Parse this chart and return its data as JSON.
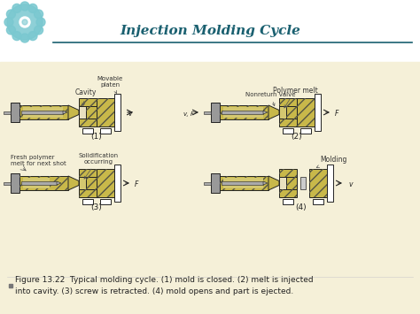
{
  "title": "Injection Molding Cycle",
  "bg_white": "#ffffff",
  "bg_cream": "#f5f0d8",
  "title_color": "#1a6070",
  "title_fontsize": 11,
  "caption": "Figure 13.22  Typical molding cycle. (1) mold is closed. (2) melt is injected\ninto cavity. (3) screw is retracted. (4) mold opens and part is ejected.",
  "caption_fontsize": 6.5,
  "labels": {
    "cavity": "Cavity",
    "movable_platen": "Movable\nplaten",
    "polymer_melt": "Polymer melt",
    "nonreturn_valve": "Nonreturn valve",
    "fresh_polymer": "Fresh polymer\nmelt for next shot",
    "solidification": "Solidification\noccurring",
    "molding": "Molding"
  },
  "step_labels": [
    "(1)",
    "(2)",
    "(3)",
    "(4)"
  ],
  "arrow_color": "#222222",
  "line_color": "#222222",
  "mold_fill": "#c8b84a",
  "mold_hatch_color": "#888866",
  "barrel_fill": "#c8b84a",
  "screw_fill": "#aaaaaa",
  "platen_fill": "#ffffff",
  "polymer_fill": "#d4c870",
  "header_line_color": "#1a6070",
  "bullet_color": "#777777",
  "label_color": "#333333",
  "label_fontsize": 5.5,
  "gear_color": "#7ac8d0"
}
